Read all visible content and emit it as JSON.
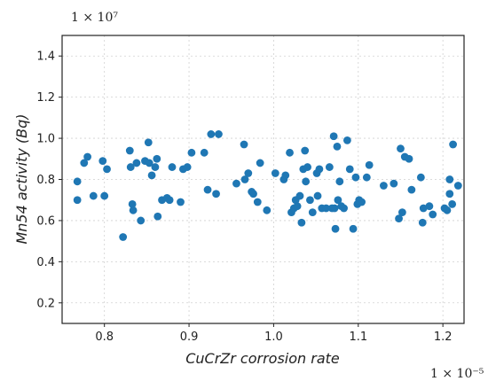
{
  "chart_data": {
    "type": "scatter",
    "xlabel": "CuCrZr corrosion rate",
    "ylabel": "Mn54 activity (Bq)",
    "x_offset_text": "1 × 10⁻⁵",
    "y_offset_text": "1 × 10⁷",
    "xlim": [
      0.75,
      1.225
    ],
    "ylim": [
      0.1,
      1.5
    ],
    "xticks": [
      0.8,
      0.9,
      1.0,
      1.1,
      1.2
    ],
    "xtick_labels": [
      "0.8",
      "0.9",
      "1.0",
      "1.1",
      "1.2"
    ],
    "yticks": [
      0.2,
      0.4,
      0.6,
      0.8,
      1.0,
      1.2,
      1.4
    ],
    "ytick_labels": [
      "0.2",
      "0.4",
      "0.6",
      "0.8",
      "1.0",
      "1.2",
      "1.4"
    ],
    "grid": true,
    "marker_color": "#1f77b4",
    "points": [
      [
        0.768,
        0.79
      ],
      [
        0.768,
        0.7
      ],
      [
        0.776,
        0.88
      ],
      [
        0.78,
        0.91
      ],
      [
        0.787,
        0.72
      ],
      [
        0.798,
        0.89
      ],
      [
        0.8,
        0.72
      ],
      [
        0.803,
        0.85
      ],
      [
        0.822,
        0.52
      ],
      [
        0.83,
        0.94
      ],
      [
        0.831,
        0.86
      ],
      [
        0.833,
        0.68
      ],
      [
        0.834,
        0.65
      ],
      [
        0.838,
        0.88
      ],
      [
        0.843,
        0.6
      ],
      [
        0.848,
        0.89
      ],
      [
        0.852,
        0.98
      ],
      [
        0.853,
        0.88
      ],
      [
        0.856,
        0.82
      ],
      [
        0.86,
        0.86
      ],
      [
        0.862,
        0.9
      ],
      [
        0.863,
        0.62
      ],
      [
        0.868,
        0.7
      ],
      [
        0.874,
        0.71
      ],
      [
        0.877,
        0.7
      ],
      [
        0.88,
        0.86
      ],
      [
        0.89,
        0.69
      ],
      [
        0.893,
        0.85
      ],
      [
        0.898,
        0.86
      ],
      [
        0.903,
        0.93
      ],
      [
        0.918,
        0.93
      ],
      [
        0.922,
        0.75
      ],
      [
        0.926,
        1.02
      ],
      [
        0.932,
        0.73
      ],
      [
        0.935,
        1.02
      ],
      [
        0.956,
        0.78
      ],
      [
        0.965,
        0.97
      ],
      [
        0.966,
        0.8
      ],
      [
        0.97,
        0.83
      ],
      [
        0.974,
        0.74
      ],
      [
        0.976,
        0.73
      ],
      [
        0.981,
        0.69
      ],
      [
        0.984,
        0.88
      ],
      [
        0.992,
        0.65
      ],
      [
        1.002,
        0.83
      ],
      [
        1.012,
        0.8
      ],
      [
        1.014,
        0.82
      ],
      [
        1.019,
        0.93
      ],
      [
        1.021,
        0.64
      ],
      [
        1.024,
        0.66
      ],
      [
        1.026,
        0.7
      ],
      [
        1.028,
        0.67
      ],
      [
        1.031,
        0.72
      ],
      [
        1.033,
        0.59
      ],
      [
        1.035,
        0.85
      ],
      [
        1.037,
        0.94
      ],
      [
        1.038,
        0.79
      ],
      [
        1.04,
        0.86
      ],
      [
        1.043,
        0.7
      ],
      [
        1.046,
        0.64
      ],
      [
        1.051,
        0.83
      ],
      [
        1.052,
        0.72
      ],
      [
        1.054,
        0.85
      ],
      [
        1.057,
        0.66
      ],
      [
        1.062,
        0.66
      ],
      [
        1.066,
        0.86
      ],
      [
        1.069,
        0.66
      ],
      [
        1.071,
        1.01
      ],
      [
        1.072,
        0.66
      ],
      [
        1.073,
        0.56
      ],
      [
        1.075,
        0.96
      ],
      [
        1.076,
        0.7
      ],
      [
        1.078,
        0.79
      ],
      [
        1.08,
        0.67
      ],
      [
        1.083,
        0.66
      ],
      [
        1.087,
        0.99
      ],
      [
        1.09,
        0.85
      ],
      [
        1.094,
        0.56
      ],
      [
        1.097,
        0.81
      ],
      [
        1.099,
        0.68
      ],
      [
        1.101,
        0.7
      ],
      [
        1.104,
        0.69
      ],
      [
        1.11,
        0.81
      ],
      [
        1.113,
        0.87
      ],
      [
        1.13,
        0.77
      ],
      [
        1.142,
        0.78
      ],
      [
        1.148,
        0.61
      ],
      [
        1.15,
        0.95
      ],
      [
        1.152,
        0.64
      ],
      [
        1.155,
        0.91
      ],
      [
        1.16,
        0.9
      ],
      [
        1.163,
        0.75
      ],
      [
        1.174,
        0.81
      ],
      [
        1.176,
        0.59
      ],
      [
        1.177,
        0.66
      ],
      [
        1.184,
        0.67
      ],
      [
        1.188,
        0.63
      ],
      [
        1.202,
        0.66
      ],
      [
        1.205,
        0.65
      ],
      [
        1.208,
        0.73
      ],
      [
        1.208,
        0.8
      ],
      [
        1.211,
        0.68
      ],
      [
        1.212,
        0.97
      ],
      [
        1.218,
        0.77
      ]
    ]
  }
}
